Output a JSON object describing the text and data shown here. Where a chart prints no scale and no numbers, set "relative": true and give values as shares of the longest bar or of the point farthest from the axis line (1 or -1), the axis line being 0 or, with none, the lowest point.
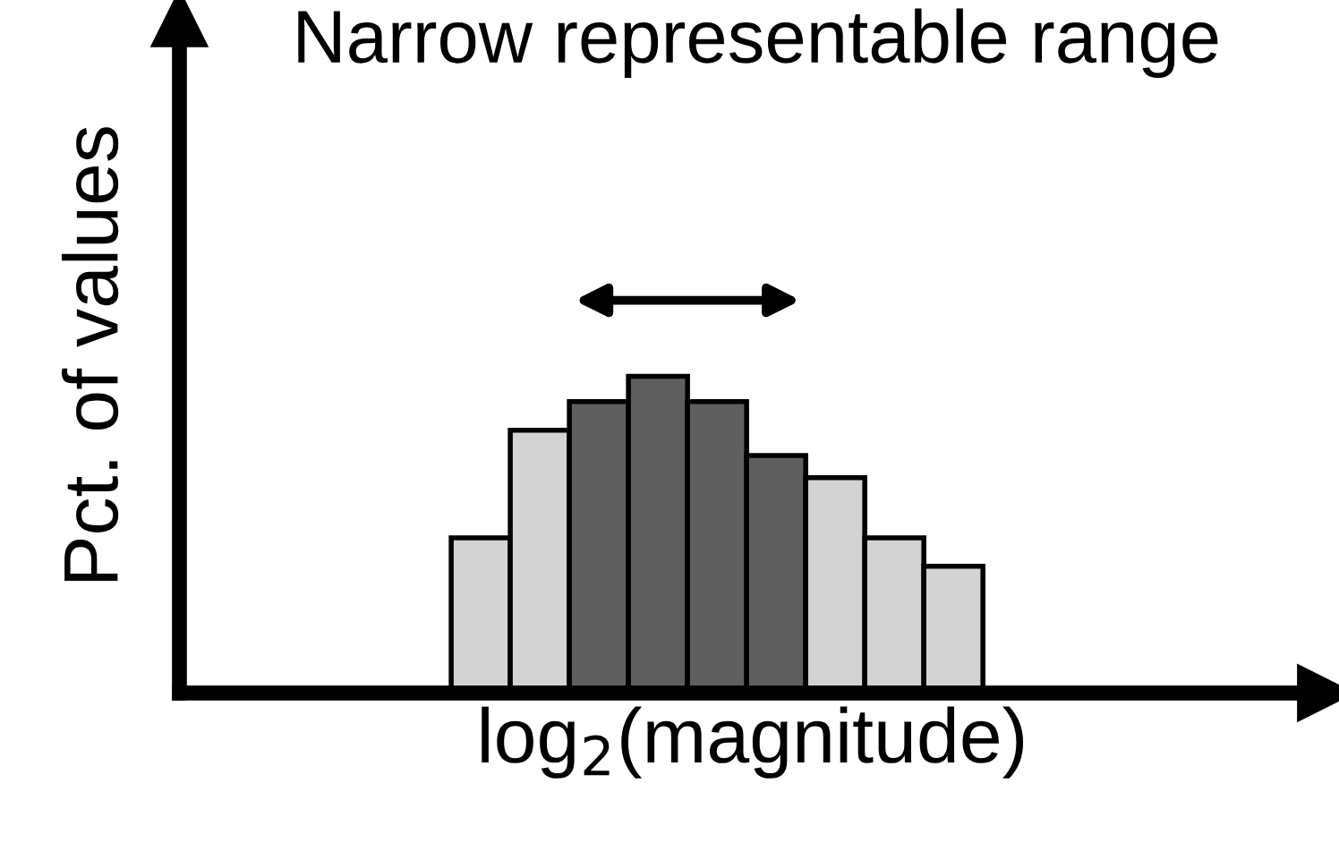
{
  "chart_data": {
    "type": "bar",
    "title": "Narrow representable range",
    "xlabel": "log$_{2}$(magnitude)",
    "ylabel": "Pct. of values",
    "relative": true,
    "categories": [
      null,
      null,
      null,
      null,
      null,
      null,
      null,
      null,
      null
    ],
    "values": [
      0.49,
      0.83,
      0.92,
      1,
      0.92,
      0.75,
      0.68,
      0.49,
      0.4
    ],
    "colors": [
      "#d3d3d3",
      "#d3d3d3",
      "#5f5f5f",
      "#5f5f5f",
      "#5f5f5f",
      "#5f5f5f",
      "#d3d3d3",
      "#d3d3d3",
      "#d3d3d3"
    ]
  }
}
